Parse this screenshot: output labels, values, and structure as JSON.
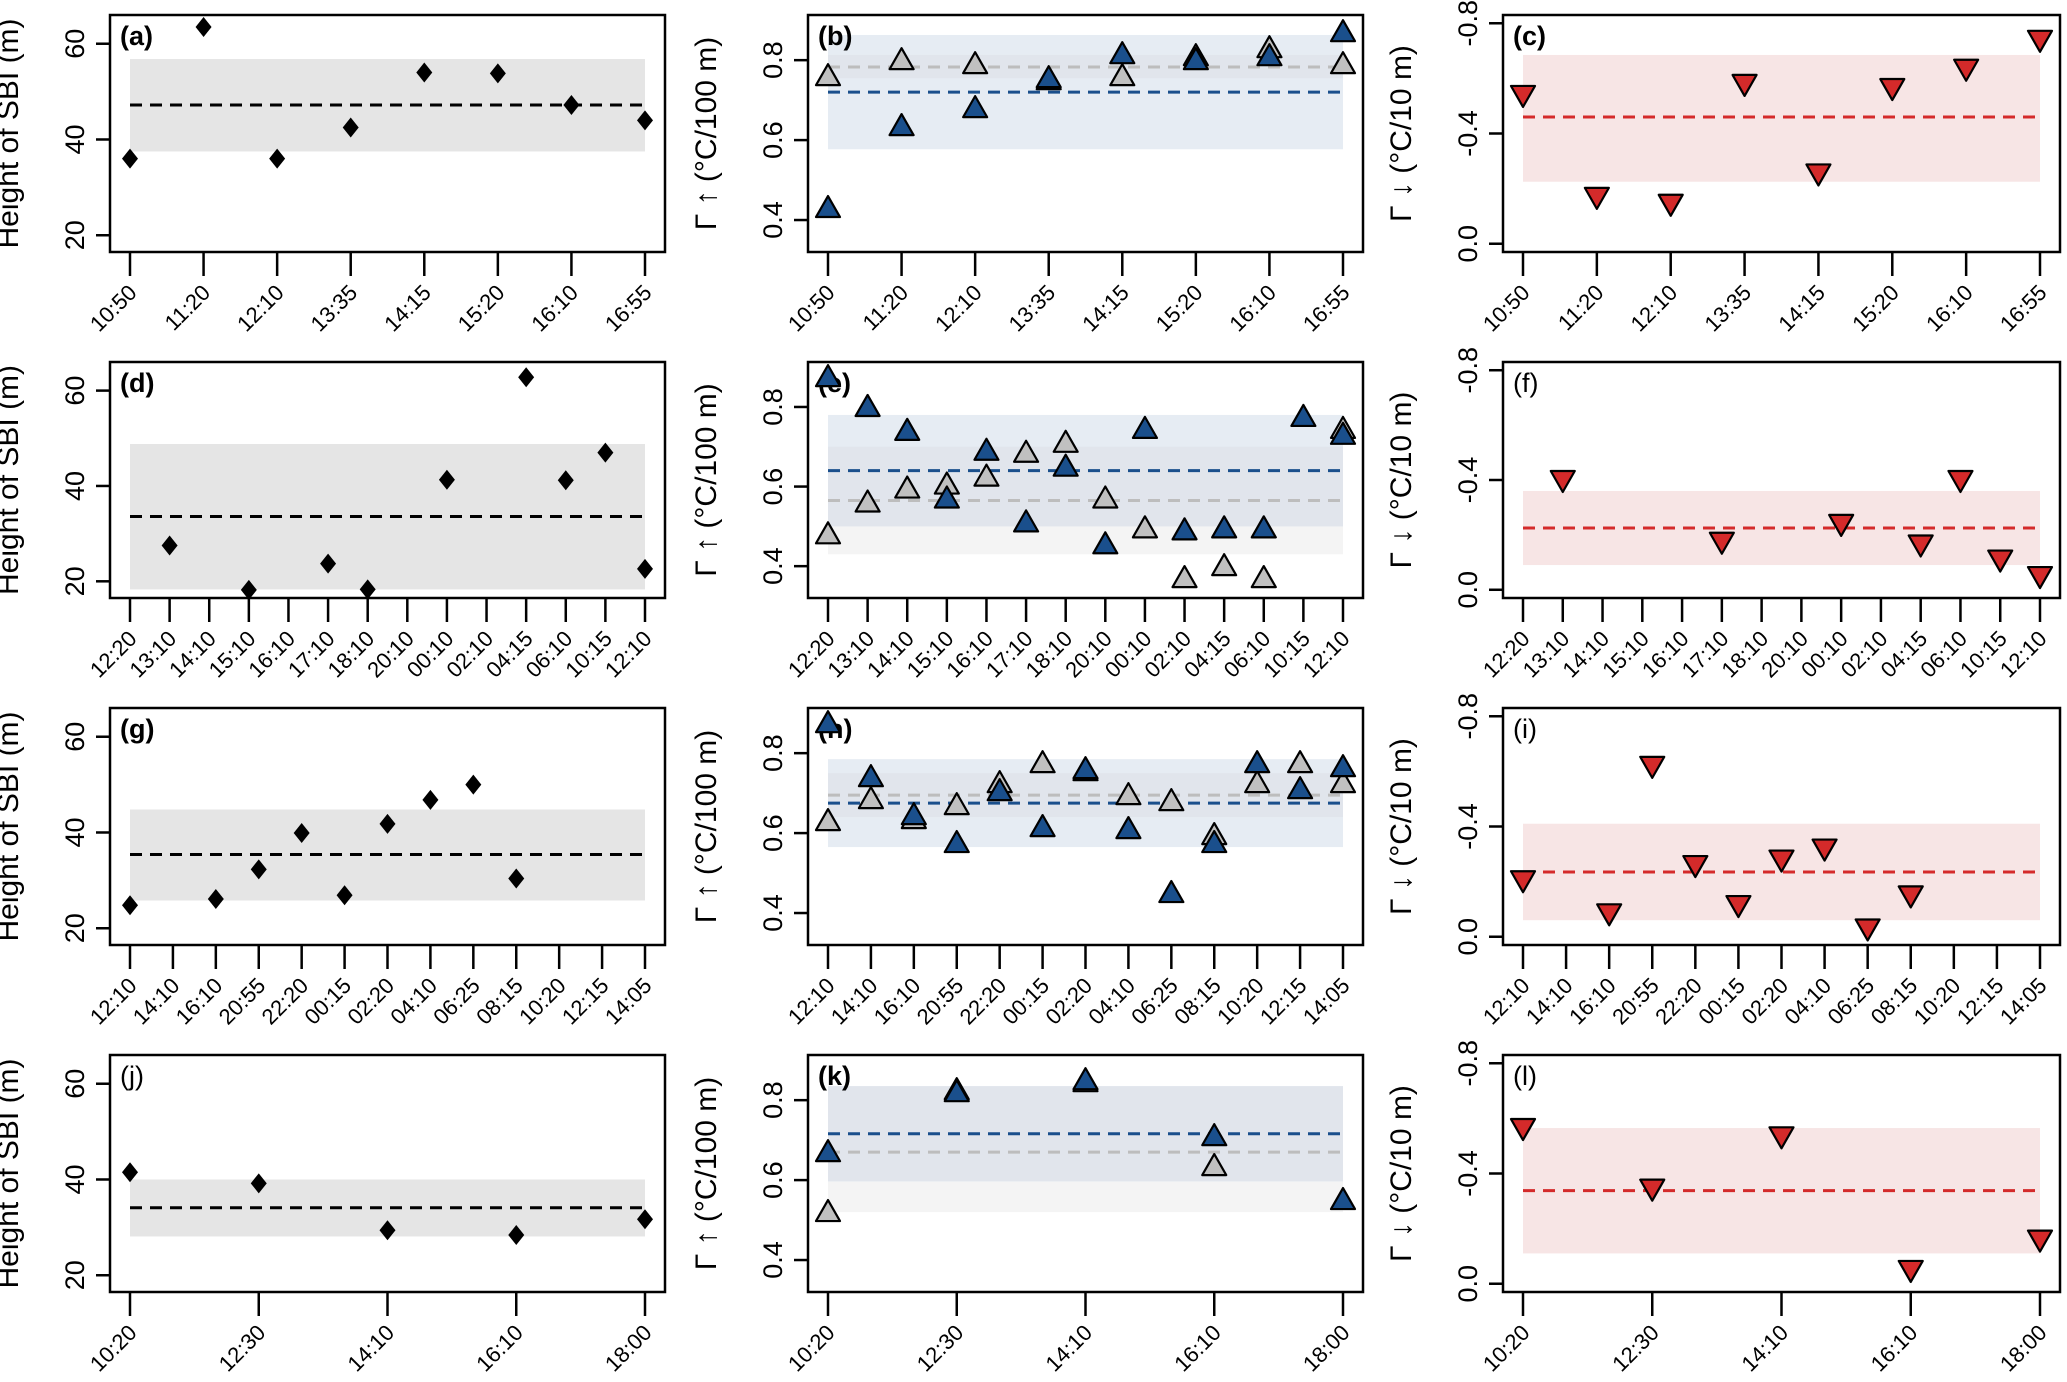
{
  "figure": {
    "rows": 4,
    "columns": 3,
    "colors": {
      "sbi_marker": "#000000",
      "sbi_band": "#e5e5e5",
      "sbi_mean_line": "#000000",
      "up_blue_marker": "#1a4f8c",
      "up_gray_marker": "#c0c0c0",
      "up_blue_band": "#e6ecf3",
      "up_gray_band": "#f4f4f4",
      "up_overlap_band": "#e1e5ec",
      "up_blue_mean_line": "#1a4f8c",
      "up_gray_mean_line": "#bdbdbd",
      "down_marker": "#d42a2a",
      "down_band": "#f7e5e5",
      "down_mean_line": "#d42a2a"
    }
  },
  "chart_data": [
    {
      "panel": "(a)",
      "type": "scatter",
      "title": "",
      "xlabel": "",
      "ylabel": "Height of SBI (m)",
      "ylim": [
        16.5,
        66
      ],
      "yticks": [
        20,
        40,
        60
      ],
      "categories": [
        "10:50",
        "11:20",
        "12:10",
        "13:35",
        "14:15",
        "15:20",
        "16:10",
        "16:55"
      ],
      "series": [
        {
          "name": "SBI height",
          "marker": "diamond",
          "values": [
            36,
            63.5,
            36,
            42.5,
            54,
            53.8,
            47.2,
            44
          ]
        }
      ],
      "mean": 47.2,
      "band": [
        37.5,
        56.8
      ]
    },
    {
      "panel": "(b)",
      "type": "scatter",
      "ylabel": "Γ ↑ (°C/100 m)",
      "ylim": [
        0.32,
        0.913
      ],
      "yticks": [
        0.4,
        0.6,
        0.8
      ],
      "categories": [
        "10:50",
        "11:20",
        "12:10",
        "13:35",
        "14:15",
        "15:20",
        "16:10",
        "16:55"
      ],
      "series": [
        {
          "name": "gray",
          "marker": "triangle-up",
          "values": [
            0.76,
            0.8,
            0.79,
            0.75,
            0.76,
            0.81,
            0.83,
            0.79
          ]
        },
        {
          "name": "blue",
          "marker": "triangle-up",
          "values": [
            0.43,
            0.635,
            0.68,
            0.755,
            0.815,
            0.8,
            0.81,
            0.87
          ]
        }
      ],
      "blue_mean": 0.72,
      "gray_mean": 0.783,
      "blue_band": [
        0.577,
        0.863
      ],
      "gray_band": [
        0.755,
        0.813
      ]
    },
    {
      "panel": "(c)",
      "type": "scatter",
      "ylabel": "Γ ↓ (°C/10 m)",
      "ylim": [
        0.03,
        -0.83
      ],
      "yticks": [
        0.0,
        -0.4,
        -0.8
      ],
      "ytick_labels": [
        "0.0",
        "-0.4",
        "-0.8"
      ],
      "categories": [
        "10:50",
        "11:20",
        "12:10",
        "13:35",
        "14:15",
        "15:20",
        "16:10",
        "16:55"
      ],
      "series": [
        {
          "name": "red",
          "marker": "triangle-down",
          "values": [
            -0.54,
            -0.17,
            -0.145,
            -0.58,
            -0.255,
            -0.565,
            -0.635,
            -0.74
          ]
        }
      ],
      "mean": -0.46,
      "band": [
        -0.225,
        -0.685
      ]
    },
    {
      "panel": "(d)",
      "type": "scatter",
      "ylabel": "Height of SBI (m)",
      "ylim": [
        16.5,
        66
      ],
      "yticks": [
        20,
        40,
        60
      ],
      "categories": [
        "12:20",
        "13:10",
        "14:10",
        "15:10",
        "16:10",
        "17:10",
        "18:10",
        "20:10",
        "00:10",
        "02:10",
        "04:15",
        "06:10",
        "10:15",
        "12:10"
      ],
      "series": [
        {
          "name": "SBI height",
          "marker": "diamond",
          "values": [
            null,
            27.5,
            null,
            18.2,
            null,
            23.7,
            18.3,
            null,
            41.3,
            null,
            62.8,
            41.2,
            47,
            22.6
          ]
        }
      ],
      "mean": 33.6,
      "band": [
        18.3,
        48.8
      ]
    },
    {
      "panel": "(e)",
      "type": "scatter",
      "ylabel": "Γ ↑ (°C/100 m)",
      "ylim": [
        0.32,
        0.913
      ],
      "yticks": [
        0.4,
        0.6,
        0.8
      ],
      "categories": [
        "12:20",
        "13:10",
        "14:10",
        "15:10",
        "16:10",
        "17:10",
        "18:10",
        "20:10",
        "00:10",
        "02:10",
        "04:15",
        "06:10",
        "10:15",
        "12:10"
      ],
      "series": [
        {
          "name": "gray",
          "marker": "triangle-up",
          "values": [
            0.48,
            0.56,
            0.595,
            0.605,
            0.625,
            0.685,
            0.71,
            0.57,
            0.495,
            0.37,
            0.4,
            0.37,
            null,
            0.745
          ]
        },
        {
          "name": "blue",
          "marker": "triangle-up",
          "values": [
            0.875,
            0.8,
            0.74,
            0.57,
            0.69,
            0.51,
            0.65,
            0.455,
            0.745,
            0.49,
            0.495,
            0.495,
            0.775,
            0.73
          ]
        }
      ],
      "blue_mean": 0.64,
      "gray_mean": 0.565,
      "blue_band": [
        0.5,
        0.78
      ],
      "gray_band": [
        0.43,
        0.7
      ]
    },
    {
      "panel": "(f)",
      "type": "scatter",
      "ylabel": "Γ ↓ (°C/10 m)",
      "ylim": [
        0.03,
        -0.83
      ],
      "yticks": [
        0.0,
        -0.4,
        -0.8
      ],
      "ytick_labels": [
        "0.0",
        "-0.4",
        "-0.8"
      ],
      "categories": [
        "12:20",
        "13:10",
        "14:10",
        "15:10",
        "16:10",
        "17:10",
        "18:10",
        "20:10",
        "00:10",
        "02:10",
        "04:15",
        "06:10",
        "10:15",
        "12:10"
      ],
      "series": [
        {
          "name": "red",
          "marker": "triangle-down",
          "values": [
            null,
            -0.4,
            null,
            null,
            null,
            -0.175,
            null,
            null,
            -0.24,
            null,
            -0.165,
            -0.4,
            -0.11,
            -0.05
          ]
        }
      ],
      "mean": -0.225,
      "band": [
        -0.09,
        -0.36
      ]
    },
    {
      "panel": "(g)",
      "type": "scatter",
      "ylabel": "Height of SBI (m)",
      "ylim": [
        16.5,
        66
      ],
      "yticks": [
        20,
        40,
        60
      ],
      "categories": [
        "12:10",
        "14:10",
        "16:10",
        "20:55",
        "22:20",
        "00:15",
        "02:20",
        "04:10",
        "06:25",
        "08:15",
        "10:20",
        "12:15",
        "14:05"
      ],
      "series": [
        {
          "name": "SBI height",
          "marker": "diamond",
          "values": [
            24.8,
            null,
            26.1,
            32.3,
            39.9,
            26.9,
            41.8,
            46.8,
            50,
            30.4,
            null,
            null,
            null
          ]
        }
      ],
      "mean": 35.4,
      "band": [
        25.8,
        44.8
      ]
    },
    {
      "panel": "(h)",
      "type": "scatter",
      "ylabel": "Γ ↑ (°C/100 m)",
      "ylim": [
        0.32,
        0.913
      ],
      "yticks": [
        0.4,
        0.6,
        0.8
      ],
      "categories": [
        "12:10",
        "14:10",
        "16:10",
        "20:55",
        "22:20",
        "00:15",
        "02:20",
        "04:10",
        "06:25",
        "08:15",
        "10:20",
        "12:15",
        "14:05"
      ],
      "series": [
        {
          "name": "gray",
          "marker": "triangle-up",
          "values": [
            0.63,
            0.685,
            0.635,
            0.67,
            0.725,
            0.775,
            0.755,
            0.695,
            0.68,
            0.595,
            0.725,
            0.775,
            0.725
          ]
        },
        {
          "name": "blue",
          "marker": "triangle-up",
          "values": [
            0.875,
            0.74,
            0.645,
            0.575,
            0.705,
            0.615,
            0.76,
            0.61,
            0.45,
            0.575,
            0.775,
            0.71,
            0.765
          ]
        }
      ],
      "blue_mean": 0.675,
      "gray_mean": 0.695,
      "blue_band": [
        0.565,
        0.785
      ],
      "gray_band": [
        0.64,
        0.75
      ]
    },
    {
      "panel": "(i)",
      "type": "scatter",
      "ylabel": "Γ ↓ (°C/10 m)",
      "ylim": [
        0.03,
        -0.83
      ],
      "yticks": [
        0.0,
        -0.4,
        -0.8
      ],
      "ytick_labels": [
        "0.0",
        "-0.4",
        "-0.8"
      ],
      "categories": [
        "12:10",
        "14:10",
        "16:10",
        "20:55",
        "22:20",
        "00:15",
        "02:20",
        "04:10",
        "06:25",
        "08:15",
        "10:20",
        "12:15",
        "14:05"
      ],
      "series": [
        {
          "name": "red",
          "marker": "triangle-down",
          "values": [
            -0.205,
            null,
            -0.085,
            -0.62,
            -0.26,
            -0.115,
            -0.28,
            -0.32,
            -0.03,
            -0.15,
            null,
            null,
            null
          ]
        }
      ],
      "mean": -0.235,
      "band": [
        -0.06,
        -0.41
      ]
    },
    {
      "panel": "(j)",
      "type": "scatter",
      "ylabel": "Height of SBI (m)",
      "ylim": [
        16.5,
        66
      ],
      "yticks": [
        20,
        40,
        60
      ],
      "categories": [
        "10:20",
        "12:30",
        "14:10",
        "16:10",
        "18:00"
      ],
      "series": [
        {
          "name": "SBI height",
          "marker": "diamond",
          "values": [
            41.5,
            39.2,
            29.4,
            28.4,
            31.7
          ]
        }
      ],
      "mean": 34.1,
      "band": [
        28.1,
        40
      ]
    },
    {
      "panel": "(k)",
      "type": "scatter",
      "ylabel": "Γ ↑ (°C/100 m)",
      "ylim": [
        0.32,
        0.913
      ],
      "yticks": [
        0.4,
        0.6,
        0.8
      ],
      "categories": [
        "10:20",
        "12:30",
        "14:10",
        "16:10",
        "18:00"
      ],
      "series": [
        {
          "name": "gray",
          "marker": "triangle-up",
          "values": [
            0.52,
            0.825,
            0.845,
            0.635,
            null
          ]
        },
        {
          "name": "blue",
          "marker": "triangle-up",
          "values": [
            0.67,
            0.82,
            0.85,
            0.71,
            0.55
          ]
        }
      ],
      "blue_mean": 0.716,
      "gray_mean": 0.67,
      "blue_band": [
        0.597,
        0.835
      ],
      "gray_band": [
        0.52,
        0.835
      ]
    },
    {
      "panel": "(l)",
      "type": "scatter",
      "ylabel": "Γ ↓ (°C/10 m)",
      "ylim": [
        0.03,
        -0.83
      ],
      "yticks": [
        0.0,
        -0.4,
        -0.8
      ],
      "ytick_labels": [
        "0.0",
        "-0.4",
        "-0.8"
      ],
      "categories": [
        "10:20",
        "12:30",
        "14:10",
        "16:10",
        "18:00"
      ],
      "series": [
        {
          "name": "red",
          "marker": "triangle-down",
          "values": [
            -0.565,
            -0.345,
            -0.535,
            -0.05,
            -0.16
          ]
        }
      ],
      "mean": -0.338,
      "band": [
        -0.11,
        -0.565
      ]
    }
  ]
}
